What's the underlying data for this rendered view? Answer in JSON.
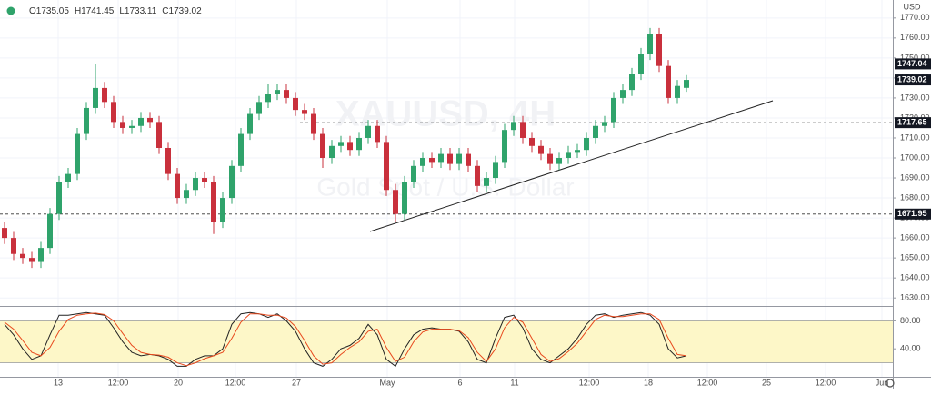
{
  "chart_data": {
    "type": "candlestick",
    "currency": "USD",
    "watermark": {
      "symbol": "XAUUSD, 4H",
      "description": "Gold Spot / U.S. Dollar"
    },
    "header_labels": [
      "O",
      "H",
      "L",
      "C"
    ],
    "up_color": "#2fa36b",
    "down_color": "#c9303c",
    "open": [
      1665,
      1660,
      1652,
      1650,
      1648,
      1655,
      1672,
      1688,
      1692,
      1712,
      1725,
      1735,
      1728,
      1718,
      1715,
      1716,
      1720,
      1718,
      1705,
      1692,
      1680,
      1684,
      1690,
      1688,
      1668,
      1680,
      1696,
      1712,
      1722,
      1728,
      1732,
      1734,
      1730,
      1724,
      1722,
      1712,
      1700,
      1706,
      1708,
      1704,
      1710,
      1716,
      1708,
      1684,
      1672,
      1688,
      1696,
      1700,
      1698,
      1702,
      1697,
      1702,
      1696,
      1686,
      1690,
      1698,
      1714,
      1718,
      1710,
      1706,
      1702,
      1697,
      1700,
      1703,
      1704,
      1710,
      1716,
      1718,
      1730,
      1734,
      1742,
      1752,
      1762,
      1746,
      1730,
      1735.05
    ],
    "high": [
      1668,
      1663,
      1655,
      1653,
      1658,
      1675,
      1691,
      1695,
      1715,
      1728,
      1747,
      1738,
      1731,
      1721,
      1719,
      1723,
      1723,
      1721,
      1708,
      1695,
      1687,
      1693,
      1693,
      1691,
      1683,
      1699,
      1715,
      1725,
      1731,
      1737,
      1737,
      1737,
      1733,
      1727,
      1725,
      1715,
      1709,
      1711,
      1711,
      1713,
      1719,
      1719,
      1711,
      1687,
      1691,
      1699,
      1703,
      1703,
      1705,
      1705,
      1705,
      1705,
      1699,
      1693,
      1701,
      1717,
      1721,
      1721,
      1713,
      1709,
      1705,
      1703,
      1706,
      1707,
      1713,
      1719,
      1721,
      1733,
      1737,
      1745,
      1755,
      1765,
      1765,
      1749,
      1739,
      1741.45
    ],
    "low": [
      1657,
      1649,
      1647,
      1645,
      1645,
      1652,
      1669,
      1685,
      1689,
      1709,
      1722,
      1725,
      1715,
      1712,
      1712,
      1713,
      1715,
      1702,
      1689,
      1677,
      1677,
      1681,
      1685,
      1662,
      1665,
      1677,
      1693,
      1709,
      1719,
      1725,
      1729,
      1727,
      1721,
      1719,
      1709,
      1695,
      1697,
      1703,
      1701,
      1701,
      1707,
      1705,
      1681,
      1668,
      1669,
      1685,
      1693,
      1695,
      1695,
      1694,
      1694,
      1693,
      1683,
      1683,
      1687,
      1695,
      1711,
      1707,
      1703,
      1699,
      1694,
      1694,
      1697,
      1700,
      1701,
      1707,
      1713,
      1715,
      1727,
      1731,
      1739,
      1749,
      1743,
      1727,
      1727,
      1733.11
    ],
    "close": [
      1660,
      1652,
      1650,
      1648,
      1655,
      1672,
      1688,
      1692,
      1712,
      1725,
      1735,
      1728,
      1718,
      1715,
      1716,
      1720,
      1718,
      1705,
      1692,
      1680,
      1684,
      1690,
      1688,
      1668,
      1680,
      1696,
      1712,
      1722,
      1728,
      1732,
      1734,
      1730,
      1724,
      1722,
      1712,
      1700,
      1706,
      1708,
      1704,
      1710,
      1716,
      1708,
      1684,
      1672,
      1688,
      1696,
      1700,
      1698,
      1702,
      1697,
      1702,
      1696,
      1686,
      1690,
      1698,
      1714,
      1718,
      1710,
      1706,
      1702,
      1697,
      1700,
      1703,
      1704,
      1710,
      1716,
      1718,
      1730,
      1734,
      1742,
      1752,
      1762,
      1746,
      1730,
      1736,
      1739.02
    ],
    "xlim": [
      -0.5,
      97.7
    ],
    "xticks": [
      {
        "value": 5.9,
        "label": "13"
      },
      {
        "value": 12.5,
        "label": "12:00"
      },
      {
        "value": 19.1,
        "label": "20"
      },
      {
        "value": 25.4,
        "label": "12:00"
      },
      {
        "value": 32.1,
        "label": "27"
      },
      {
        "value": 42.1,
        "label": "May"
      },
      {
        "value": 50.1,
        "label": "6"
      },
      {
        "value": 56.1,
        "label": "11"
      },
      {
        "value": 64.3,
        "label": "12:00"
      },
      {
        "value": 70.8,
        "label": "18"
      },
      {
        "value": 77.3,
        "label": "12:00"
      },
      {
        "value": 83.8,
        "label": "25"
      },
      {
        "value": 90.3,
        "label": "12:00"
      },
      {
        "value": 96.5,
        "label": "Jun"
      }
    ],
    "ylim": [
      1626,
      1779
    ],
    "yticks": [
      {
        "value": 1770,
        "label": "1770.00"
      },
      {
        "value": 1760,
        "label": "1760.00"
      },
      {
        "value": 1750,
        "label": "1750.00"
      },
      {
        "value": 1740,
        "label": "1740.00"
      },
      {
        "value": 1730,
        "label": "1730.00"
      },
      {
        "value": 1720,
        "label": "1720.00"
      },
      {
        "value": 1710,
        "label": "1710.00"
      },
      {
        "value": 1700,
        "label": "1700.00"
      },
      {
        "value": 1690,
        "label": "1690.00"
      },
      {
        "value": 1680,
        "label": "1680.00"
      },
      {
        "value": 1670,
        "label": "1670.00"
      },
      {
        "value": 1660,
        "label": "1660.00"
      },
      {
        "value": 1650,
        "label": "1650.00"
      },
      {
        "value": 1640,
        "label": "1640.00"
      },
      {
        "value": 1630,
        "label": "1630.00"
      }
    ],
    "levels": [
      1747.04,
      1717.65,
      1671.95
    ],
    "stochastic": {
      "y2lim": [
        0,
        100
      ],
      "y2ticks": [
        {
          "value": 80,
          "label": "80.00"
        },
        {
          "value": 40,
          "label": "40.00"
        }
      ],
      "band": [
        20,
        80
      ],
      "band_color": "#fdf7c8",
      "series": [
        {
          "color": "#222222",
          "values": [
            75,
            60,
            40,
            25,
            30,
            60,
            88,
            88,
            90,
            92,
            90,
            88,
            70,
            50,
            35,
            30,
            32,
            30,
            25,
            15,
            15,
            25,
            30,
            30,
            40,
            75,
            90,
            92,
            90,
            85,
            90,
            80,
            65,
            40,
            20,
            15,
            25,
            40,
            45,
            55,
            75,
            60,
            25,
            15,
            40,
            60,
            68,
            70,
            68,
            68,
            65,
            50,
            25,
            20,
            55,
            85,
            88,
            70,
            40,
            25,
            20,
            30,
            40,
            55,
            75,
            88,
            90,
            85,
            88,
            90,
            92,
            88,
            75,
            40,
            27,
            30
          ]
        },
        {
          "color": "#e8491d",
          "values": [
            78,
            68,
            52,
            35,
            30,
            42,
            65,
            82,
            88,
            90,
            91,
            89,
            80,
            62,
            45,
            35,
            32,
            31,
            28,
            20,
            16,
            20,
            26,
            30,
            35,
            55,
            78,
            90,
            90,
            88,
            88,
            84,
            72,
            52,
            30,
            18,
            20,
            32,
            42,
            50,
            65,
            68,
            42,
            22,
            28,
            50,
            64,
            68,
            68,
            68,
            66,
            56,
            35,
            22,
            40,
            70,
            85,
            78,
            55,
            32,
            22,
            26,
            36,
            48,
            65,
            82,
            88,
            86,
            86,
            88,
            90,
            90,
            82,
            55,
            32,
            30
          ]
        }
      ]
    }
  }
}
